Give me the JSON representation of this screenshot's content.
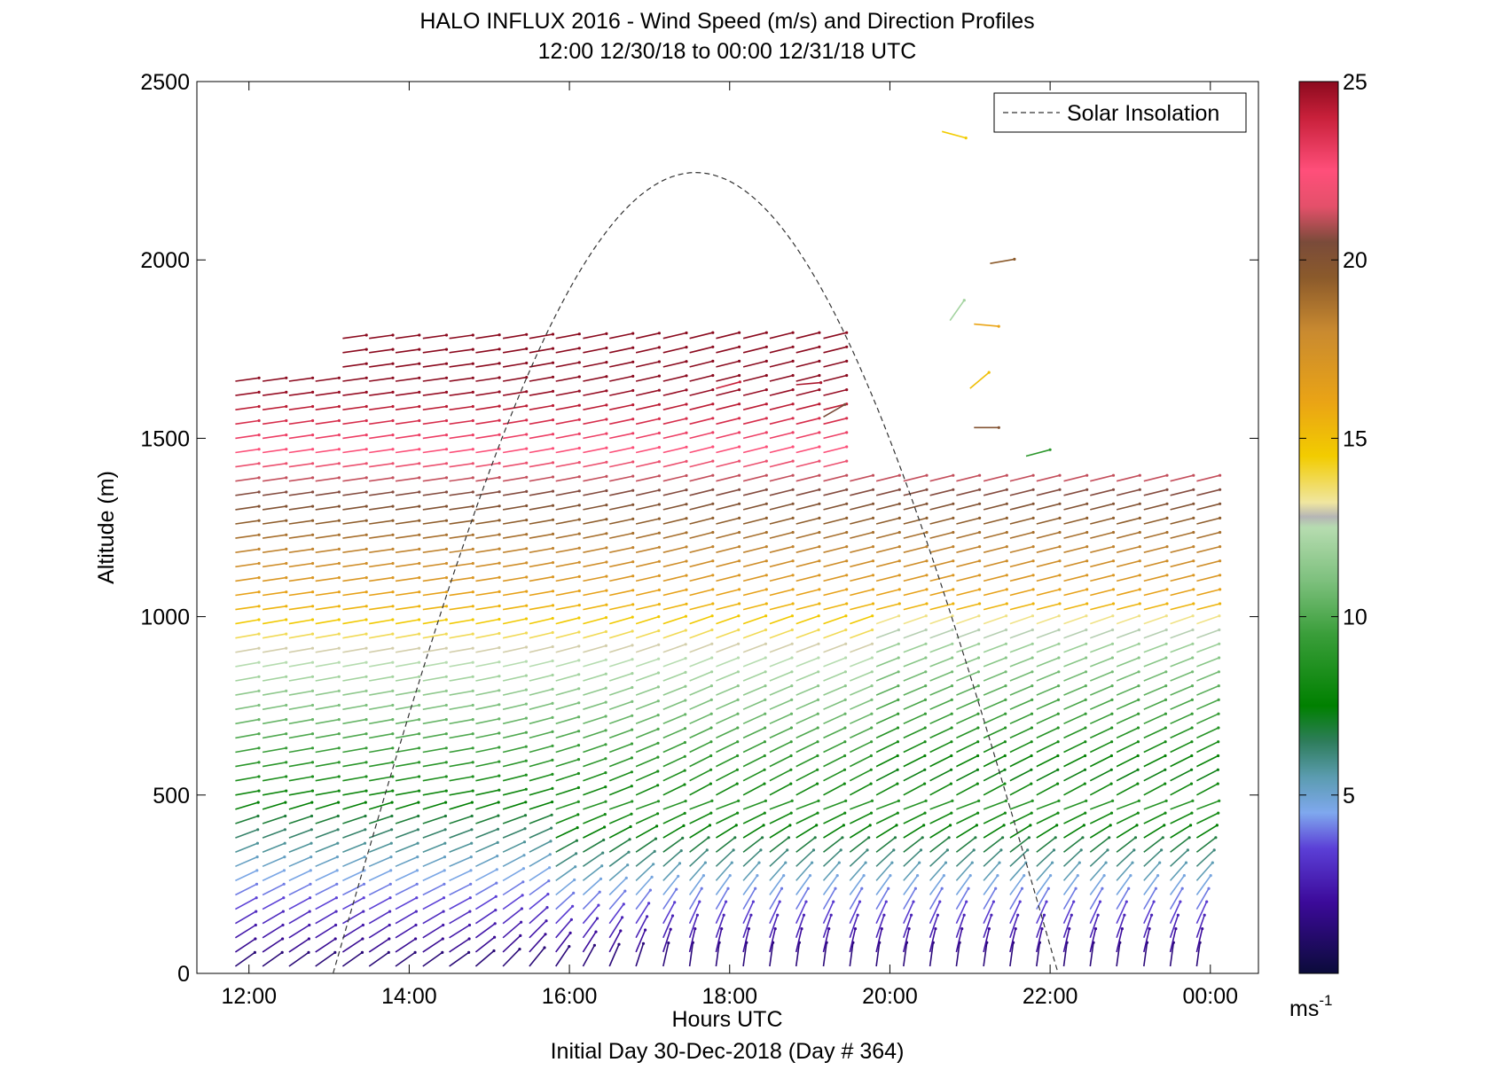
{
  "chart_data": {
    "type": "wind-barb-profile",
    "title": "HALO INFLUX 2016 - Wind Speed (m/s) and Direction Profiles",
    "subtitle": "12:00 12/30/18 to 00:00 12/31/18  UTC",
    "xlabel": "Hours UTC",
    "footer": "Initial Day 30-Dec-2018 (Day # 364)",
    "ylabel": "Altitude (m)",
    "x_ticks": [
      "12:00",
      "14:00",
      "16:00",
      "18:00",
      "20:00",
      "22:00",
      "00:00"
    ],
    "x_tick_hours": [
      12,
      14,
      16,
      18,
      20,
      22,
      24
    ],
    "xlim": [
      11.35,
      24.6
    ],
    "y_ticks": [
      0,
      500,
      1000,
      1500,
      2000,
      2500
    ],
    "ylim": [
      0,
      2500
    ],
    "legend": {
      "label": "Solar Insolation",
      "position": "top-right"
    },
    "colorbar": {
      "ticks": [
        5,
        10,
        15,
        20,
        25
      ],
      "range": [
        0,
        25
      ],
      "unit_label": "ms",
      "unit_exponent": "-1",
      "stops": [
        {
          "v": 0,
          "c": "#0b0b3a"
        },
        {
          "v": 2,
          "c": "#3c0a9a"
        },
        {
          "v": 3.5,
          "c": "#5b3fd6"
        },
        {
          "v": 4.5,
          "c": "#7fa8ee"
        },
        {
          "v": 5.5,
          "c": "#5b9cb0"
        },
        {
          "v": 6.5,
          "c": "#2e7d5b"
        },
        {
          "v": 7.5,
          "c": "#008000"
        },
        {
          "v": 9.5,
          "c": "#3a9e3a"
        },
        {
          "v": 11,
          "c": "#7dc07d"
        },
        {
          "v": 12.5,
          "c": "#b6dcb0"
        },
        {
          "v": 12.8,
          "c": "#b5b5b5"
        },
        {
          "v": 13.2,
          "c": "#f0e6a0"
        },
        {
          "v": 14.5,
          "c": "#f2cc00"
        },
        {
          "v": 16,
          "c": "#eaa415"
        },
        {
          "v": 18,
          "c": "#c98a30"
        },
        {
          "v": 19.5,
          "c": "#8b5a2b"
        },
        {
          "v": 20.5,
          "c": "#7a4b3a"
        },
        {
          "v": 21.5,
          "c": "#e4506a"
        },
        {
          "v": 22.5,
          "c": "#ff4f7a"
        },
        {
          "v": 24,
          "c": "#c8203a"
        },
        {
          "v": 25,
          "c": "#8b0a1e"
        }
      ]
    },
    "solar_insolation": {
      "sunrise_hour": 13.05,
      "sunset_hour": 22.1,
      "peak_hour": 17.55,
      "peak_altitude_m": 2245
    },
    "profile_hours": [
      11.83,
      12.17,
      12.5,
      12.83,
      13.17,
      13.5,
      13.83,
      14.17,
      14.5,
      14.83,
      15.17,
      15.5,
      15.83,
      16.17,
      16.5,
      16.83,
      17.17,
      17.5,
      17.83,
      18.17,
      18.5,
      18.83,
      19.17,
      19.5,
      19.83,
      20.17,
      20.5,
      20.83,
      21.17,
      21.5,
      21.83,
      22.17,
      22.5,
      22.83,
      23.17,
      23.5,
      23.83
    ],
    "level_spacing_m": 40,
    "max_level_m": 1660,
    "upper_layer_top_m": {
      "early": 1780,
      "late": 1410,
      "transition_hour": 19.3
    },
    "profiles_summary": [
      {
        "altitude_m": 100,
        "speed_ms": 3,
        "direction": "southwesterly"
      },
      {
        "altitude_m": 500,
        "speed_ms": 8,
        "direction": "westerly"
      },
      {
        "altitude_m": 900,
        "speed_ms": 13,
        "direction": "westerly"
      },
      {
        "altitude_m": 1100,
        "speed_ms": 17,
        "direction": "west-southwesterly"
      },
      {
        "altitude_m": 1300,
        "speed_ms": 20,
        "direction": "west-southwesterly"
      },
      {
        "altitude_m": 1600,
        "speed_ms": 24,
        "direction": "westerly"
      }
    ],
    "isolated_barbs": [
      {
        "hour": 20.65,
        "altitude_m": 2360,
        "speed_ms": 14.5,
        "dir_deg": -15
      },
      {
        "hour": 21.25,
        "altitude_m": 1990,
        "speed_ms": 19.5,
        "dir_deg": 10
      },
      {
        "hour": 20.75,
        "altitude_m": 1830,
        "speed_ms": 12,
        "dir_deg": 55
      },
      {
        "hour": 21.05,
        "altitude_m": 1820,
        "speed_ms": 16,
        "dir_deg": -5
      },
      {
        "hour": 21.0,
        "altitude_m": 1640,
        "speed_ms": 15,
        "dir_deg": 40
      },
      {
        "hour": 18.83,
        "altitude_m": 1650,
        "speed_ms": 24.5,
        "dir_deg": 5
      },
      {
        "hour": 17.83,
        "altitude_m": 1640,
        "speed_ms": 24,
        "dir_deg": 15
      },
      {
        "hour": 21.05,
        "altitude_m": 1530,
        "speed_ms": 20,
        "dir_deg": 0
      },
      {
        "hour": 21.7,
        "altitude_m": 1450,
        "speed_ms": 9,
        "dir_deg": 15
      },
      {
        "hour": 19.17,
        "altitude_m": 1560,
        "speed_ms": 20.5,
        "dir_deg": 30
      }
    ]
  }
}
